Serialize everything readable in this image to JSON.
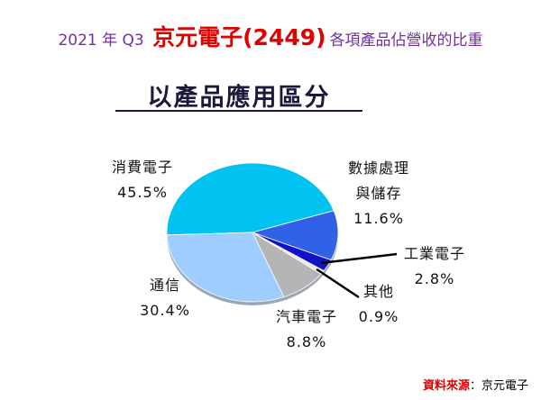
{
  "chart_data": {
    "type": "pie",
    "title": [
      "2021 年 Q3",
      "京元電子(2449)",
      "各項產品佔營收的比重"
    ],
    "subtitle": "以產品應用區分",
    "categories": [
      "消費電子",
      "數據處理\n與儲存",
      "工業電子",
      "其他",
      "汽車電子",
      "通信"
    ],
    "values": [
      45.5,
      11.6,
      2.8,
      0.9,
      8.8,
      30.4
    ],
    "value_labels": [
      "45.5%",
      "11.6%",
      "2.8%",
      "0.9%",
      "8.8%",
      "30.4%"
    ],
    "colors": [
      "#00c3f2",
      "#2f62e6",
      "#1212c6",
      "#e8e8e8",
      "#b5b5b5",
      "#9fcdff"
    ],
    "source_label": "資料來源",
    "source": "：京元電子"
  }
}
